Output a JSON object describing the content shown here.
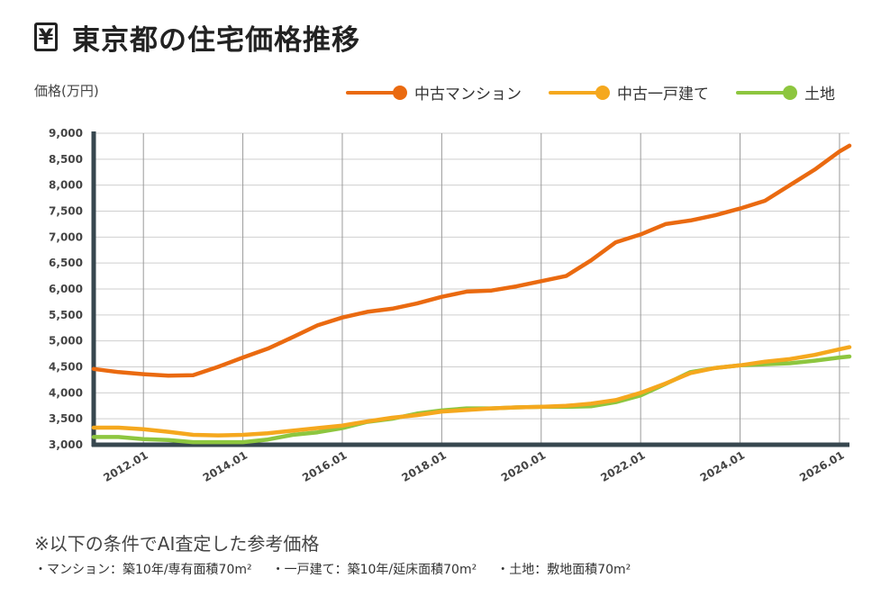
{
  "header": {
    "icon": "yen-icon",
    "icon_glyph": "¥",
    "title": "東京都の住宅価格推移"
  },
  "chart_data": {
    "type": "line",
    "title": "東京都の住宅価格推移",
    "ylabel": "価格(万円)",
    "xlabel": "",
    "ylim": [
      3000,
      9000
    ],
    "yticks": [
      3000,
      3500,
      4000,
      4500,
      5000,
      5500,
      6000,
      6500,
      7000,
      7500,
      8000,
      8500,
      9000
    ],
    "ytick_labels": [
      "3,000",
      "3,500",
      "4,000",
      "4,500",
      "5,000",
      "5,500",
      "6,000",
      "6,500",
      "7,000",
      "7,500",
      "8,000",
      "8,500",
      "9,000"
    ],
    "xlim": [
      2011.0,
      2026.2
    ],
    "xticks": [
      2012,
      2014,
      2016,
      2018,
      2020,
      2022,
      2024,
      2026
    ],
    "xtick_labels": [
      "2012.01",
      "2014.01",
      "2016.01",
      "2018.01",
      "2020.01",
      "2022.01",
      "2024.01",
      "2026.01"
    ],
    "legend_position": "top-right",
    "grid": true,
    "x": [
      2011.0,
      2011.5,
      2012.0,
      2012.5,
      2013.0,
      2013.5,
      2014.0,
      2014.5,
      2015.0,
      2015.5,
      2016.0,
      2016.5,
      2017.0,
      2017.5,
      2018.0,
      2018.5,
      2019.0,
      2019.5,
      2020.0,
      2020.5,
      2021.0,
      2021.5,
      2022.0,
      2022.5,
      2023.0,
      2023.5,
      2024.0,
      2024.5,
      2025.0,
      2025.5,
      2026.0,
      2026.2
    ],
    "series": [
      {
        "name": "中古マンション",
        "color": "#ea6a10",
        "values": [
          4460,
          4400,
          4360,
          4330,
          4340,
          4500,
          4680,
          4850,
          5070,
          5300,
          5450,
          5560,
          5620,
          5720,
          5850,
          5950,
          5970,
          6050,
          6150,
          6250,
          6550,
          6900,
          7050,
          7250,
          7320,
          7420,
          7550,
          7700,
          8000,
          8300,
          8650,
          8760
        ]
      },
      {
        "name": "中古一戸建て",
        "color": "#f5a81e",
        "values": [
          3330,
          3330,
          3300,
          3250,
          3190,
          3180,
          3190,
          3220,
          3270,
          3320,
          3370,
          3450,
          3520,
          3570,
          3640,
          3670,
          3700,
          3720,
          3730,
          3750,
          3790,
          3860,
          4000,
          4180,
          4380,
          4480,
          4530,
          4600,
          4650,
          4730,
          4840,
          4880
        ]
      },
      {
        "name": "土地",
        "color": "#8dc63f",
        "values": [
          3150,
          3150,
          3110,
          3090,
          3050,
          3050,
          3050,
          3100,
          3190,
          3240,
          3320,
          3440,
          3500,
          3600,
          3660,
          3700,
          3700,
          3720,
          3730,
          3730,
          3740,
          3820,
          3950,
          4170,
          4400,
          4480,
          4530,
          4550,
          4570,
          4620,
          4680,
          4700
        ]
      }
    ]
  },
  "footer": {
    "note": "※以下の条件でAI査定した参考価格",
    "conditions": [
      "・マンション：築10年/専有面積70m²",
      "・一戸建て：築10年/延床面積70m²",
      "・土地：敷地面積70m²"
    ]
  }
}
